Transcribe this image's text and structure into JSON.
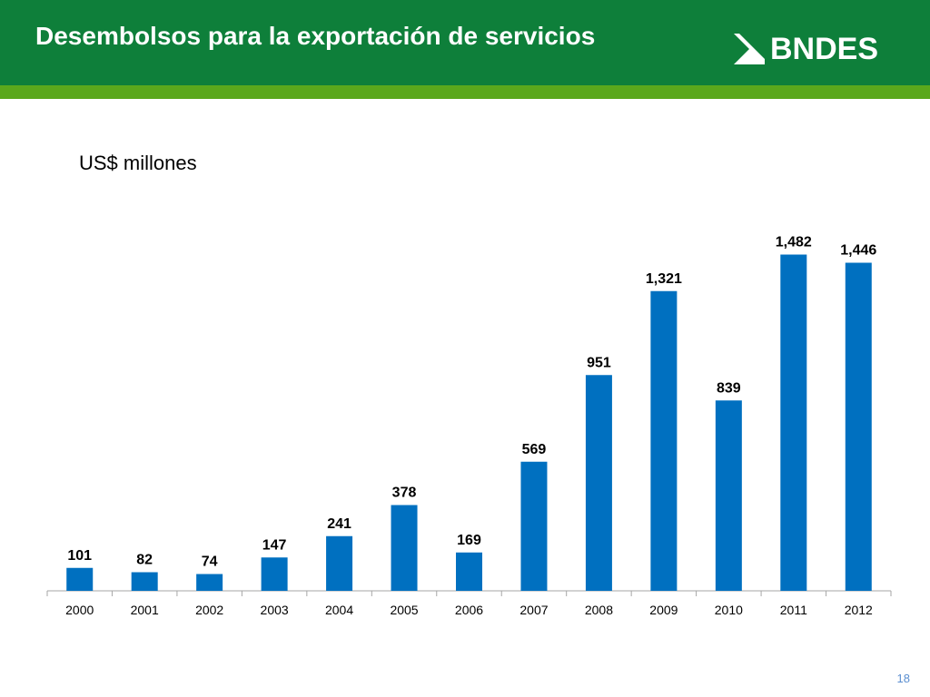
{
  "header": {
    "title": "Desembolsos para la exportación de servicios",
    "logo_text": "BNDES",
    "bg_color": "#0e7f3a",
    "stripe_color": "#5aa81c"
  },
  "unit_label": "US$ millones",
  "page_number": "18",
  "chart_data": {
    "type": "bar",
    "categories": [
      "2000",
      "2001",
      "2002",
      "2003",
      "2004",
      "2005",
      "2006",
      "2007",
      "2008",
      "2009",
      "2010",
      "2011",
      "2012"
    ],
    "values": [
      101,
      82,
      74,
      147,
      241,
      378,
      169,
      569,
      951,
      1321,
      839,
      1482,
      1446
    ],
    "value_labels": [
      "101",
      "82",
      "74",
      "147",
      "241",
      "378",
      "169",
      "569",
      "951",
      "1,321",
      "839",
      "1,482",
      "1,446"
    ],
    "bar_color": "#0070c0",
    "ylim": [
      0,
      1600
    ],
    "grid": false,
    "legend": "none"
  }
}
